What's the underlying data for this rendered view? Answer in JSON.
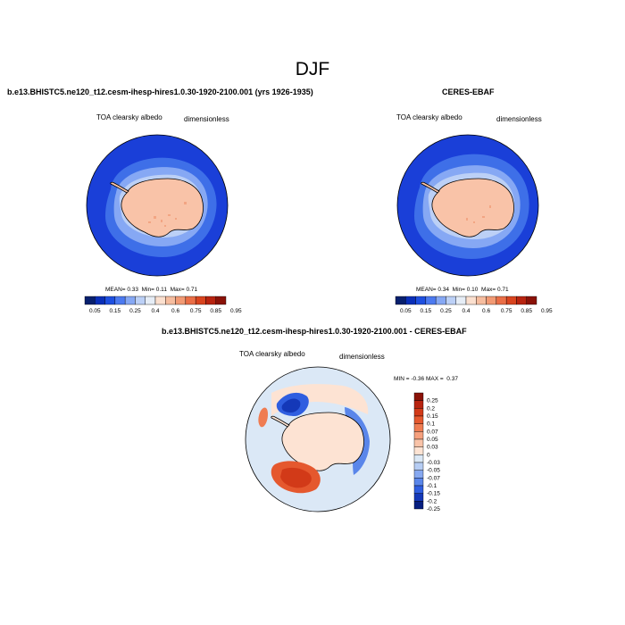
{
  "figure_title": "DJF",
  "panels": [
    {
      "title": "b.e13.BHISTC5.ne120_t12.cesm-ihesp-hires1.0.30-1920-2100.001 (yrs 1926-1935)",
      "left_label": "TOA clearsky albedo",
      "right_label": "dimensionless",
      "stats": {
        "mean_label": "MEAN=",
        "mean": "0.33",
        "min_label": "Min=",
        "min": "0.11",
        "max_label": "Max=",
        "max": "0.71"
      }
    },
    {
      "title": "CERES-EBAF",
      "left_label": "TOA clearsky albedo",
      "right_label": "dimensionless",
      "stats": {
        "mean_label": "MEAN=",
        "mean": "0.34",
        "min_label": "Min=",
        "min": "0.10",
        "max_label": "Max=",
        "max": "0.71"
      }
    },
    {
      "title": "b.e13.BHISTC5.ne120_t12.cesm-ihesp-hires1.0.30-1920-2100.001 - CERES-EBAF",
      "left_label": "TOA clearsky albedo",
      "right_label": "dimensionless",
      "stats": {
        "min_label": "MIN =",
        "min": "-0.36",
        "max_label": "MAX =",
        "max": "0.37"
      }
    }
  ],
  "colorbar_abs": {
    "labels": [
      "0.05",
      "0.15",
      "0.25",
      "0.4",
      "0.6",
      "0.75",
      "0.85",
      "0.95"
    ],
    "colors": [
      "#08206e",
      "#0a2fb8",
      "#1e4fe0",
      "#4c7af0",
      "#86a8f4",
      "#bcd0f6",
      "#e6edf6",
      "#fbe0cf",
      "#f6bd9f",
      "#f29a74",
      "#ea6e46",
      "#d9441f",
      "#b82410",
      "#8a1208"
    ]
  },
  "colorbar_diff": {
    "labels": [
      "0.25",
      "0.2",
      "0.15",
      "0.1",
      "0.07",
      "0.05",
      "0.03",
      "0",
      "-0.03",
      "-0.05",
      "-0.07",
      "-0.1",
      "-0.15",
      "-0.2",
      "-0.25"
    ],
    "colors": [
      "#8a1208",
      "#b82410",
      "#d23a18",
      "#e5582e",
      "#ef7c52",
      "#f6a07d",
      "#f9c3a8",
      "#fde3d3",
      "#dbe8f6",
      "#b6cdf4",
      "#86a8f0",
      "#5a86ea",
      "#2f5ee0",
      "#1438b8",
      "#061e80"
    ]
  },
  "map_colors": {
    "ocean_deep": "#1a3fd8",
    "ocean_mid": "#3e6fe8",
    "ocean_light": "#86a8f4",
    "ocean_pale": "#bcd0f6",
    "land": "#f9c3a8",
    "land_dark": "#f2a583",
    "diff_neutral": "#dbe8f6",
    "diff_red": "#e5582e",
    "diff_blue": "#2f5ee0"
  }
}
